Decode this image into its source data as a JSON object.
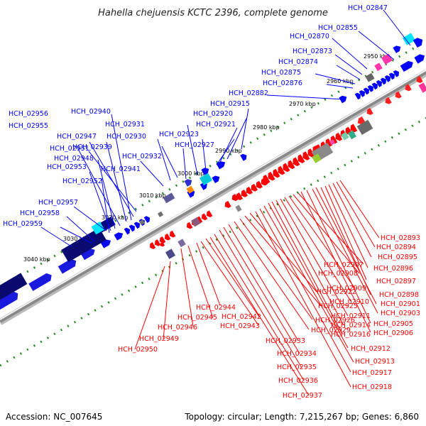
{
  "header": {
    "title": "Hahella chejuensis KCTC 2396, complete genome"
  },
  "footer": {
    "accession": "Accession: NC_007645",
    "summary": "Topology: circular; Length: 7,215,267 bp; Genes: 6,860"
  },
  "colors": {
    "forward": "#0000ff",
    "reverse": "#ff0000",
    "backbone": "#777777",
    "tick": "#228b22"
  },
  "scale_labels": [
    "2950 kbp",
    "2960 kbp",
    "2970 kbp",
    "2980 kbp",
    "2990 kbp",
    "3000 kbp",
    "3010 kbp",
    "3020 kbp",
    "3030 kbp",
    "3040 kbp"
  ],
  "forward_labels": [
    "HCH_02847",
    "HCH_02855",
    "HCH_02870",
    "HCH_02873",
    "HCH_02874",
    "HCH_02875",
    "HCH_02876",
    "HCH_02882",
    "HCH_02915",
    "HCH_02920",
    "HCH_02921",
    "HCH_02923",
    "HCH_02927",
    "HCH_02931",
    "HCH_02930",
    "HCH_02932",
    "HCH_02940",
    "HCH_02939",
    "HCH_02941",
    "HCH_02956",
    "HCH_02955",
    "HCH_02947",
    "HCH_02951",
    "HCH_02948",
    "HCH_02953",
    "HCH_02952",
    "HCH_02957",
    "HCH_02958",
    "HCH_02959"
  ],
  "reverse_labels": [
    "HCH_02893",
    "HCH_02894",
    "HCH_02895",
    "HCH_02896",
    "HCH_02897",
    "HCH_02898",
    "HCH_02901",
    "HCH_02903",
    "HCH_02905",
    "HCH_02906",
    "HCH_02907",
    "HCH_02908",
    "HCH_02909",
    "HCH_02910",
    "HCH_02911",
    "HCH_02914",
    "HCH_02916",
    "HCH_02912",
    "HCH_02913",
    "HCH_02917",
    "HCH_02918",
    "HCH_02922",
    "HCH_02925",
    "HCH_02926",
    "HCH_02929",
    "HCH_02933",
    "HCH_02934",
    "HCH_02935",
    "HCH_02936",
    "HCH_02937",
    "HCH_02942",
    "HCH_02943",
    "HCH_02944",
    "HCH_02945",
    "HCH_02946",
    "HCH_02949",
    "HCH_02950"
  ]
}
